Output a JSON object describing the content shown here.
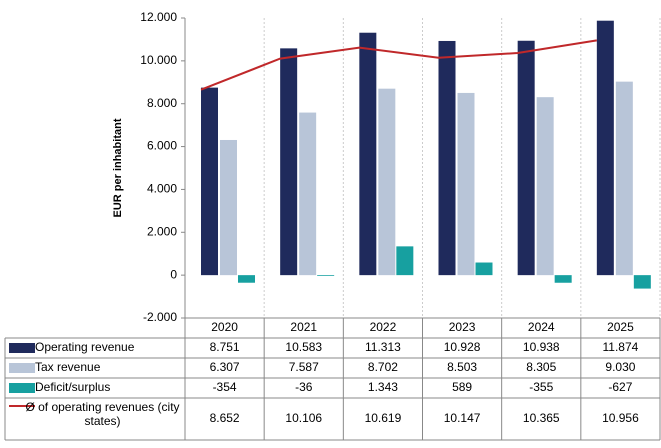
{
  "chart_data": {
    "type": "bar",
    "y_label": "EUR per inhabitant",
    "categories": [
      "2020",
      "2021",
      "2022",
      "2023",
      "2024",
      "2025"
    ],
    "series": [
      {
        "name": "Operating revenue",
        "type": "bar",
        "color": "#1f2a5c",
        "values": [
          8751,
          10583,
          11313,
          10928,
          10938,
          11874
        ],
        "value_labels": [
          "8.751",
          "10.583",
          "11.313",
          "10.928",
          "10.938",
          "11.874"
        ]
      },
      {
        "name": "Tax revenue",
        "type": "bar",
        "color": "#b8c5d8",
        "values": [
          6307,
          7587,
          8702,
          8503,
          8305,
          9030
        ],
        "value_labels": [
          "6.307",
          "7.587",
          "8.702",
          "8.503",
          "8.305",
          "9.030"
        ]
      },
      {
        "name": "Deficit/surplus",
        "type": "bar",
        "color": "#17a0a0",
        "values": [
          -354,
          -36,
          1343,
          589,
          -355,
          -627
        ],
        "value_labels": [
          "-354",
          "-36",
          "1.343",
          "589",
          "-355",
          "-627"
        ]
      },
      {
        "name": "Ø of operating revenues (city states)",
        "type": "line",
        "color": "#c0282a",
        "values": [
          8652,
          10106,
          10619,
          10147,
          10365,
          10956
        ],
        "value_labels": [
          "8.652",
          "10.106",
          "10.619",
          "10.147",
          "10.365",
          "10.956"
        ]
      }
    ],
    "ylim": [
      -2000,
      12000
    ],
    "yticks": [
      {
        "value": -2000,
        "label": "-2.000"
      },
      0,
      {
        "value": 2000,
        "label": "2.000"
      },
      {
        "value": 4000,
        "label": "4.000"
      },
      {
        "value": 6000,
        "label": "6.000"
      },
      {
        "value": 8000,
        "label": "8.000"
      },
      {
        "value": 10000,
        "label": "10.000"
      },
      {
        "value": 12000,
        "label": "12.000"
      }
    ],
    "data_table": true
  }
}
